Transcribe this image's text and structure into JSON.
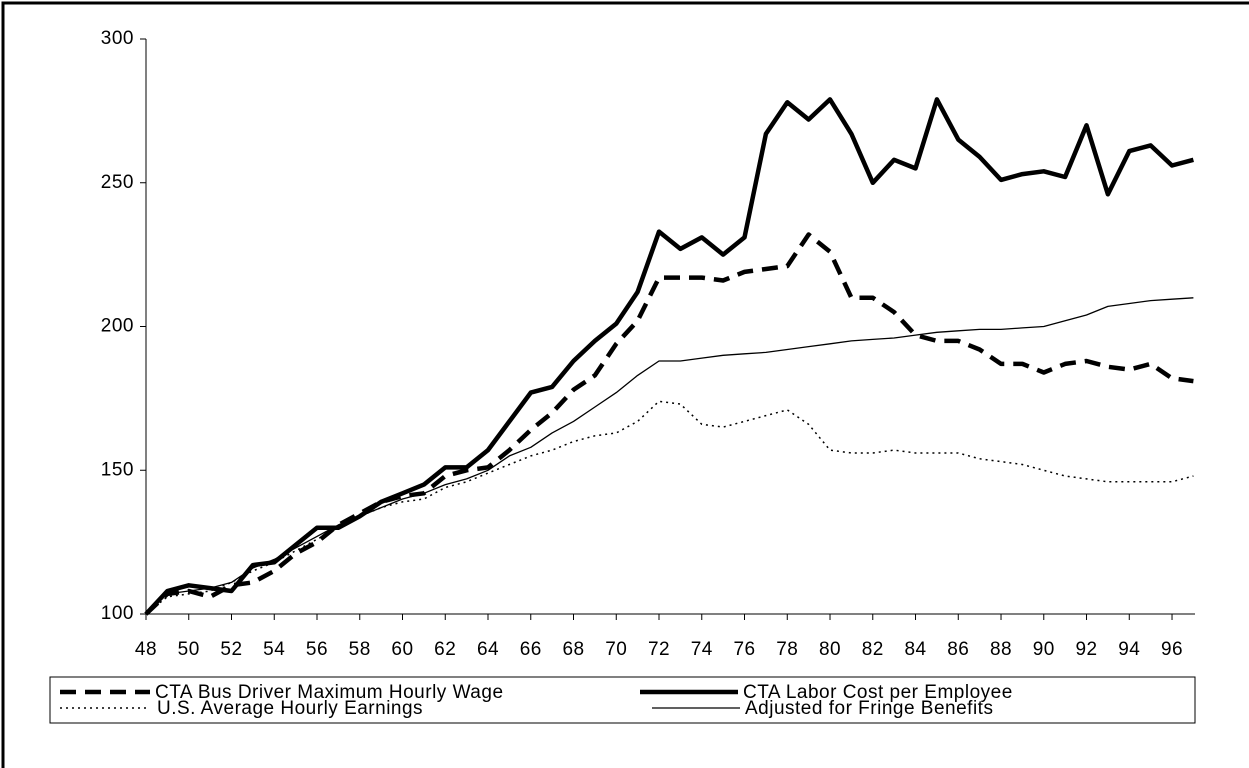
{
  "chart_data": {
    "type": "line",
    "x": [
      48,
      49,
      50,
      51,
      52,
      53,
      54,
      55,
      56,
      57,
      58,
      59,
      60,
      61,
      62,
      63,
      64,
      65,
      66,
      67,
      68,
      69,
      70,
      71,
      72,
      73,
      74,
      75,
      76,
      77,
      78,
      79,
      80,
      81,
      82,
      83,
      84,
      85,
      86,
      87,
      88,
      89,
      90,
      91,
      92,
      93,
      94,
      95,
      96,
      97
    ],
    "xlim": [
      48,
      97
    ],
    "xticks": [
      48,
      50,
      52,
      54,
      56,
      58,
      60,
      62,
      64,
      66,
      68,
      70,
      72,
      74,
      76,
      78,
      80,
      82,
      84,
      86,
      88,
      90,
      92,
      94,
      96
    ],
    "ylim": [
      100,
      300
    ],
    "yticks": [
      100,
      150,
      200,
      250,
      300
    ],
    "series": [
      {
        "name": "CTA Bus Driver Maximum Hourly Wage",
        "color": "#000000",
        "values": [
          100,
          107,
          108,
          106,
          110,
          111,
          115,
          121,
          125,
          131,
          135,
          139,
          141,
          142,
          148,
          150,
          151,
          157,
          164,
          170,
          178,
          183,
          194,
          202,
          217,
          217,
          217,
          216,
          219,
          220,
          221,
          232,
          226,
          210,
          210,
          205,
          197,
          195,
          195,
          192,
          187,
          187,
          184,
          187,
          188,
          186,
          185,
          187,
          182,
          181
        ]
      },
      {
        "name": "CTA Labor Cost per Employee",
        "color": "#000000",
        "values": [
          100,
          108,
          110,
          109,
          108,
          117,
          118,
          124,
          130,
          130,
          134,
          139,
          142,
          145,
          151,
          151,
          157,
          167,
          177,
          179,
          188,
          195,
          201,
          212,
          233,
          227,
          231,
          225,
          231,
          267,
          278,
          272,
          279,
          267,
          250,
          258,
          255,
          279,
          265,
          259,
          251,
          253,
          254,
          252,
          270,
          246,
          261,
          263,
          256,
          258
        ]
      },
      {
        "name": "U.S. Average Hourly Earnings",
        "color": "#000000",
        "values": [
          100,
          106,
          107,
          108,
          111,
          115,
          118,
          122,
          126,
          130,
          134,
          137,
          139,
          140,
          144,
          146,
          149,
          152,
          155,
          157,
          160,
          162,
          163,
          167,
          174,
          173,
          166,
          165,
          167,
          169,
          171,
          166,
          157,
          156,
          156,
          157,
          156,
          156,
          156,
          154,
          153,
          152,
          150,
          148,
          147,
          146,
          146,
          146,
          146,
          148
        ]
      },
      {
        "name": "Adjusted for Fringe Benefits",
        "color": "#000000",
        "values": [
          100,
          107,
          108,
          109,
          111,
          116,
          119,
          123,
          127,
          131,
          134,
          137,
          140,
          142,
          145,
          147,
          150,
          155,
          158,
          163,
          167,
          172,
          177,
          183,
          188,
          188,
          189,
          190,
          190.5,
          191,
          192,
          193,
          194,
          195,
          195.5,
          196,
          197,
          198,
          198.5,
          199,
          199,
          199.5,
          200,
          202,
          204,
          207,
          208,
          209,
          209.5,
          210
        ]
      }
    ]
  }
}
